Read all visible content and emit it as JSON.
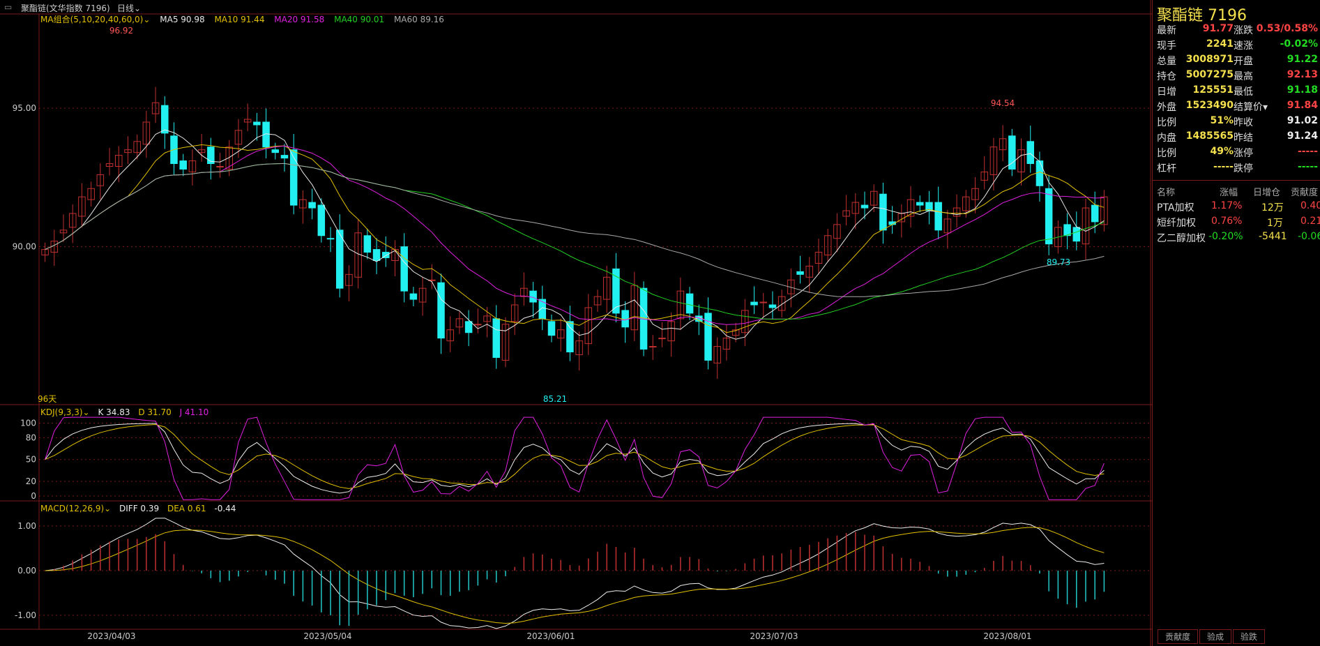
{
  "header": {
    "window_title": "聚酯链(文华指数 7196)",
    "period": "日线",
    "ma_label": "MA组合(5,10,20,40,60,0)",
    "ma_values": [
      {
        "label": "MA5 90.98",
        "color": "#e8e8e8"
      },
      {
        "label": "MA10 91.44",
        "color": "#e0c000"
      },
      {
        "label": "MA20 91.58",
        "color": "#e020e0"
      },
      {
        "label": "MA40 90.01",
        "color": "#22d022"
      },
      {
        "label": "MA60 89.16",
        "color": "#aaaaaa"
      }
    ]
  },
  "main_chart": {
    "y_ticks": [
      {
        "label": "95.00",
        "v": 95
      },
      {
        "label": "90.00",
        "v": 90
      }
    ],
    "y_range": [
      84.5,
      97.9
    ],
    "high_label": "96.92",
    "low_label": "85.21",
    "right_high_label": "94.54",
    "right_low_label": "89.73",
    "days_label": "96天"
  },
  "kdj": {
    "label": "KDJ(9,3,3)",
    "values": [
      {
        "label": "K 34.83",
        "color": "#eeeeee"
      },
      {
        "label": "D 31.70",
        "color": "#e0c000"
      },
      {
        "label": "J 41.10",
        "color": "#e020e0"
      }
    ],
    "y_ticks": [
      "100",
      "80",
      "50",
      "20",
      "0"
    ]
  },
  "macd": {
    "label": "MACD(12,26,9)",
    "values": [
      {
        "label": "DIFF 0.39",
        "color": "#eeeeee"
      },
      {
        "label": "DEA 0.61",
        "color": "#e0c000"
      },
      {
        "label": "-0.44",
        "color": "#eeeeee"
      }
    ],
    "y_ticks": [
      "1.00",
      "0.00",
      "-1.00"
    ]
  },
  "x_labels": [
    "2023/04/03",
    "2023/05/04",
    "2023/06/01",
    "2023/07/03",
    "2023/08/01"
  ],
  "chart_data": {
    "type": "candlestick",
    "closes": [
      89.9,
      90.2,
      90.6,
      91.2,
      91.8,
      92.1,
      92.6,
      93.0,
      93.3,
      93.5,
      93.8,
      94.5,
      95.2,
      94.1,
      93.0,
      92.8,
      93.1,
      93.5,
      93.0,
      92.9,
      93.6,
      94.2,
      94.6,
      94.4,
      93.6,
      93.4,
      93.2,
      91.5,
      91.7,
      91.4,
      90.4,
      90.3,
      88.5,
      89.0,
      90.5,
      89.8,
      89.5,
      89.6,
      89.9,
      88.4,
      88.1,
      88.5,
      88.8,
      86.7,
      87.0,
      87.4,
      86.9,
      87.2,
      87.5,
      86.0,
      87.2,
      87.9,
      88.5,
      88.0,
      87.4,
      86.8,
      87.0,
      86.2,
      86.6,
      87.8,
      88.2,
      88.9,
      87.6,
      87.1,
      88.6,
      86.3,
      86.4,
      86.7,
      87.3,
      88.4,
      87.6,
      87.3,
      85.9,
      86.4,
      86.7,
      87.0,
      87.7,
      87.9,
      88.0,
      87.8,
      88.2,
      88.8,
      89.0,
      89.3,
      89.8,
      90.4,
      90.8,
      91.3,
      91.6,
      91.4,
      92.0,
      90.6,
      90.8,
      91.2,
      91.7,
      91.5,
      91.3,
      90.6,
      91.0,
      91.4,
      91.8,
      92.1,
      92.7,
      93.6,
      93.9,
      92.8,
      93.5,
      93.0,
      92.2,
      90.1,
      90.7,
      90.4,
      90.2,
      91.4,
      90.9,
      91.8
    ]
  }
}
